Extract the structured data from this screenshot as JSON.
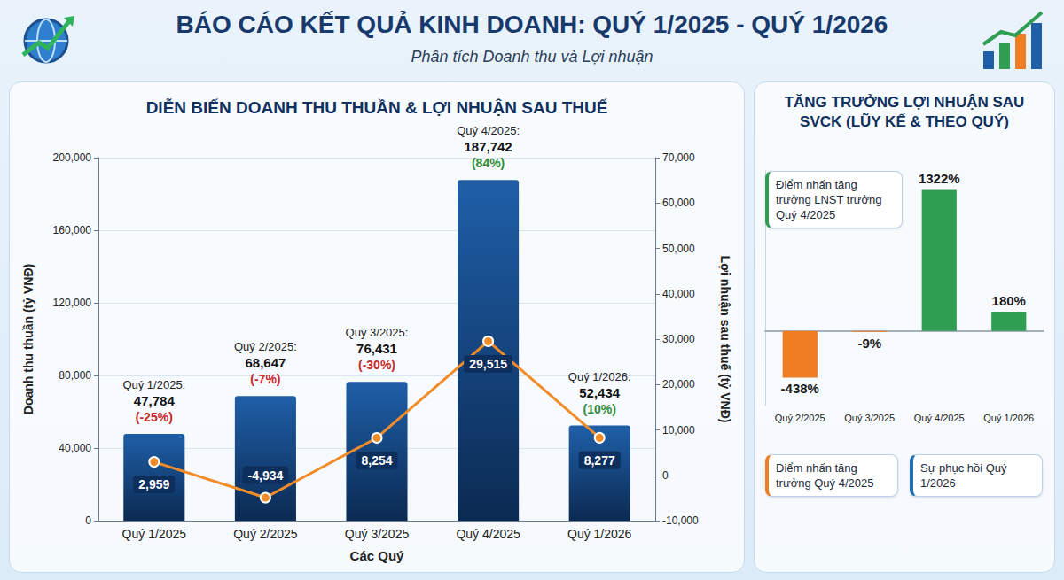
{
  "header": {
    "title": "BÁO CÁO KẾT QUẢ KINH DOANH: QUÝ 1/2025 - QUÝ 1/2026",
    "subtitle": "Phân tích Doanh thu và Lợi nhuận"
  },
  "chart_data": [
    {
      "type": "bar",
      "title": "DIỄN BIẾN DOANH THU THUẦN & LỢI NHUẬN SAU THUẾ",
      "x_label": "Các Quý",
      "y_label": "Doanh thu thuần (tỷ VNĐ)",
      "y2_label": "Lợi nhuận sau thuế (tỷ VNĐ)",
      "categories": [
        "Quý 1/2025",
        "Quý 2/2025",
        "Quý 3/2025",
        "Quý 4/2025",
        "Quý 1/2026"
      ],
      "series": [
        {
          "type": "bar",
          "color": "#1f5fa8",
          "values": [
            47784,
            68647,
            76431,
            187742,
            52434
          ],
          "value_labels": [
            "47,784",
            "68,647",
            "76,431",
            "187,742",
            "52,434"
          ],
          "bar_headers": [
            "Quý 1/2025:",
            "Quý 2/2025:",
            "Quý 3/2025:",
            "Quý 4/2025:",
            "Quý 1/2026:"
          ],
          "growth": [
            -25,
            -7,
            -30,
            84,
            10
          ],
          "growth_labels": [
            "(-25%)",
            "(-7%)",
            "(-30%)",
            "(84%)",
            "(10%)"
          ]
        },
        {
          "type": "line",
          "axis": "y2",
          "color": "#f28c28",
          "marker": "circle",
          "line_style": "solid",
          "values": [
            2959,
            -4934,
            8254,
            29515,
            8277
          ],
          "value_labels": [
            "2,959",
            "-4,934",
            "8,254",
            "29,515",
            "8,277"
          ]
        }
      ],
      "ylim": [
        0,
        200000
      ],
      "yticks": [
        0,
        {
          "value": 40000,
          "label": "40,000"
        },
        {
          "value": 80000,
          "label": "80,000"
        },
        {
          "value": 120000,
          "label": "120,000"
        },
        {
          "value": 160000,
          "label": "160,000"
        },
        {
          "value": 200000,
          "label": "200,000"
        }
      ],
      "y2lim": [
        -10000,
        70000
      ],
      "y2ticks": [
        {
          "value": -10000,
          "label": "-10,000"
        },
        0,
        {
          "value": 10000,
          "label": "10,000"
        },
        {
          "value": 20000,
          "label": "20,000"
        },
        {
          "value": 30000,
          "label": "30,000"
        },
        {
          "value": 40000,
          "label": "40,000"
        },
        {
          "value": 50000,
          "label": "50,000"
        },
        {
          "value": 60000,
          "label": "60,000"
        },
        {
          "value": 70000,
          "label": "70,000"
        }
      ],
      "grid": true,
      "data_labels": true
    },
    {
      "type": "bar",
      "title": "TĂNG TRƯỞNG LỢI NHUẬN SAU SVCK (LŨY KẾ & THEO QUÝ)",
      "categories": [
        "Quý 2/2025",
        "Quý 3/2025",
        "Quý 4/2025",
        "Quý 1/2026"
      ],
      "values": [
        -438,
        -9,
        1322,
        180
      ],
      "value_labels": [
        "-438%",
        "-9%",
        "1322%",
        "180%"
      ],
      "colors": [
        "#ef7d22",
        "#ef7d22",
        "#2f9e52",
        "#2f9e52"
      ],
      "ylim": [
        -700,
        1500
      ],
      "tick_labels": "x",
      "grid": false,
      "data_labels": true,
      "annotations": [
        "Điểm nhấn tăng trưởng LNST trưởng Quý 4/2025",
        "Điểm nhấn tăng trưởng Quý 4/2025",
        "Sự phục hồi Quý 1/2026"
      ]
    }
  ]
}
